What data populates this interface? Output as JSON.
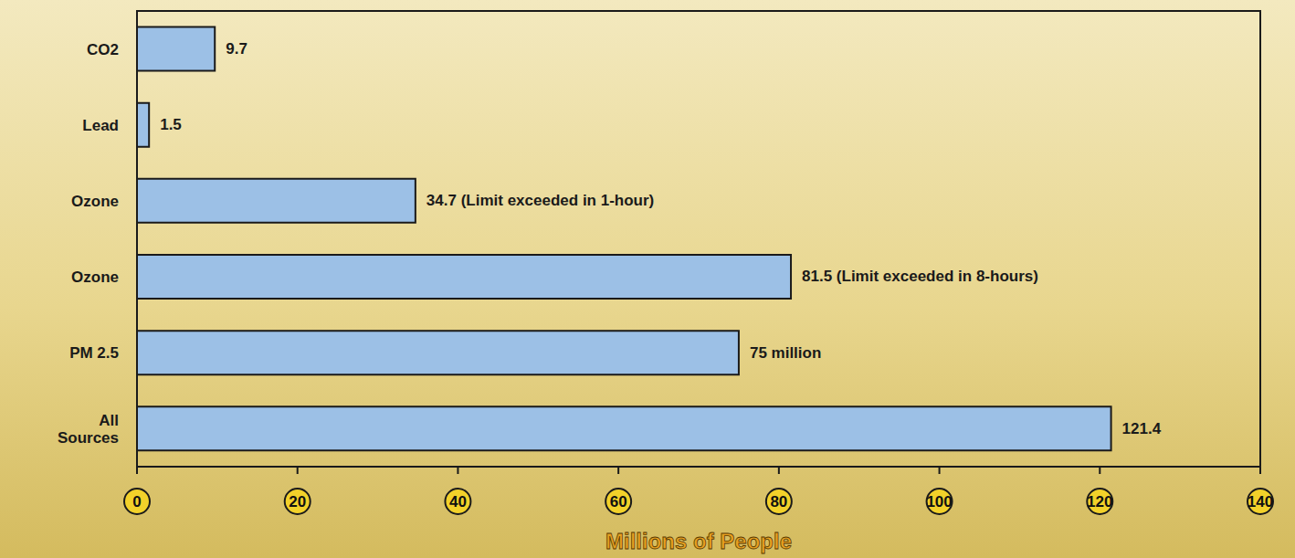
{
  "chart_data": {
    "type": "bar",
    "orientation": "horizontal",
    "categories": [
      "CO2",
      "Lead",
      "Ozone",
      "Ozone",
      "PM 2.5",
      "All Sources"
    ],
    "values": [
      9.7,
      1.5,
      34.7,
      81.5,
      75,
      121.4
    ],
    "value_labels": [
      "9.7",
      "1.5",
      "34.7 (Limit exceeded in 1-hour)",
      "81.5 (Limit exceeded in 8-hours)",
      "75 million",
      "121.4"
    ],
    "data_labels": true,
    "x_label": "Millions of People",
    "xlim": [
      0,
      140
    ],
    "xticks": [
      0,
      20,
      40,
      60,
      80,
      100,
      120,
      140
    ],
    "color": "#9cc0e6",
    "grid": false
  }
}
